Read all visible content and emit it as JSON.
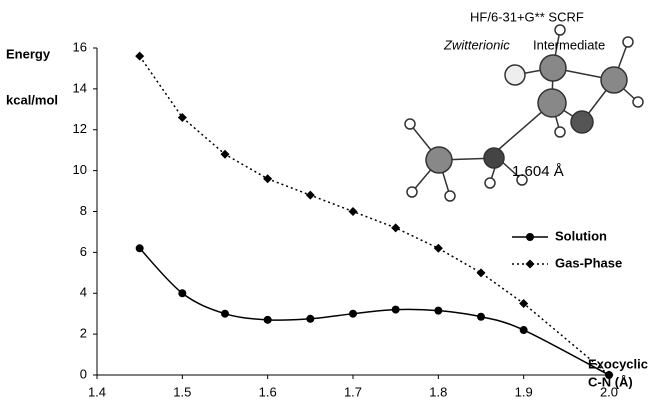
{
  "chart_data": {
    "type": "line",
    "annotations": [
      "HF/6-31+G** SCRF",
      "Zwitterionic",
      "Intermediate",
      "1.604 Å"
    ],
    "y_label": [
      "Energy",
      "kcal/mol"
    ],
    "x_label": [
      "Exocyclic",
      "C-N (Å)"
    ],
    "x": [
      1.45,
      1.5,
      1.55,
      1.6,
      1.65,
      1.7,
      1.75,
      1.8,
      1.85,
      1.9,
      2.0
    ],
    "series": [
      {
        "name": "Solution",
        "color": "#000000",
        "style": "solid",
        "smooth": true,
        "marker": "circle",
        "values": [
          6.2,
          4.0,
          3.0,
          2.7,
          2.75,
          3.0,
          3.2,
          3.15,
          2.85,
          2.2,
          0
        ]
      },
      {
        "name": "Gas-Phase",
        "color": "#000000",
        "style": "dotted",
        "smooth": false,
        "marker": "diamond",
        "values": [
          15.6,
          12.6,
          10.8,
          9.6,
          8.8,
          8.0,
          7.2,
          6.2,
          5.0,
          3.5,
          0
        ]
      }
    ],
    "xlim": [
      1.4,
      2.0
    ],
    "xticks": [
      1.4,
      1.5,
      1.6,
      1.7,
      1.8,
      1.9,
      {
        "value": 2,
        "label": "2.0"
      }
    ],
    "ylim": [
      0,
      16
    ],
    "yticks": [
      0,
      2,
      4,
      6,
      8,
      10,
      12,
      14,
      16
    ],
    "grid": false
  }
}
